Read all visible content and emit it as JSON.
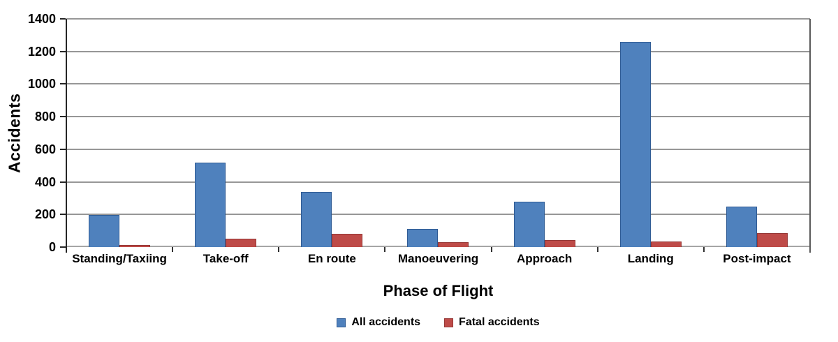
{
  "chart_data": {
    "type": "bar",
    "title": "",
    "xlabel": "Phase of Flight",
    "ylabel": "Accidents",
    "categories": [
      "Standing/Taxiing",
      "Take-off",
      "En route",
      "Manoeuvering",
      "Approach",
      "Landing",
      "Post-impact"
    ],
    "series": [
      {
        "name": "All accidents",
        "color": "#4F81BD",
        "border_color": "#2F5B94",
        "values": [
          195,
          520,
          340,
          110,
          280,
          1260,
          250
        ]
      },
      {
        "name": "Fatal accidents",
        "color": "#BE4B48",
        "border_color": "#953735",
        "values": [
          5,
          50,
          80,
          30,
          45,
          35,
          85
        ]
      }
    ],
    "ylim": [
      0,
      1400
    ],
    "yticks": [
      0,
      200,
      400,
      600,
      800,
      1000,
      1200,
      1400
    ],
    "grid": true,
    "legend_position": "bottom"
  }
}
